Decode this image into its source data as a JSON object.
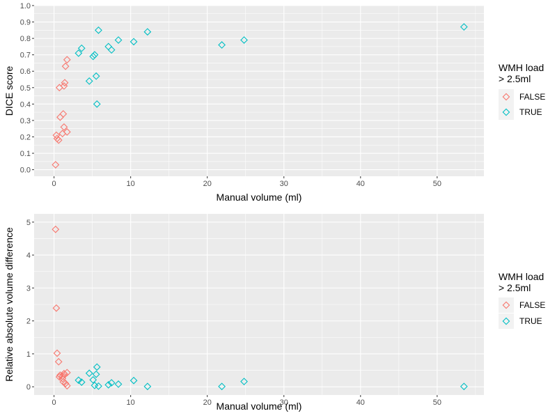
{
  "chart_data": [
    {
      "type": "scatter",
      "xlabel": "Manual volume (ml)",
      "ylabel": "DICE score",
      "xlim": [
        -2.6,
        56.1
      ],
      "ylim": [
        -0.04,
        1.0
      ],
      "xticks": [
        "0",
        "10",
        "20",
        "30",
        "40",
        "50"
      ],
      "yticks": [
        "0.0",
        "0.1",
        "0.2",
        "0.3",
        "0.4",
        "0.5",
        "0.6",
        "0.7",
        "0.8",
        "0.9",
        "1.0"
      ],
      "grid": true,
      "legend": {
        "title": [
          "WMH load",
          "> 2.5ml"
        ],
        "position": "right"
      },
      "series": [
        {
          "name": "FALSE",
          "color": "#F8766D",
          "marker": "diamond-open",
          "points": [
            [
              0.2,
              0.03
            ],
            [
              0.3,
              0.21
            ],
            [
              0.4,
              0.19
            ],
            [
              0.6,
              0.18
            ],
            [
              0.7,
              0.5
            ],
            [
              0.8,
              0.32
            ],
            [
              1.1,
              0.22
            ],
            [
              1.2,
              0.34
            ],
            [
              1.3,
              0.26
            ],
            [
              1.3,
              0.51
            ],
            [
              1.4,
              0.53
            ],
            [
              1.5,
              0.63
            ],
            [
              1.7,
              0.67
            ],
            [
              1.7,
              0.23
            ]
          ]
        },
        {
          "name": "TRUE",
          "color": "#00BFC4",
          "marker": "diamond-open",
          "points": [
            [
              3.2,
              0.71
            ],
            [
              3.6,
              0.74
            ],
            [
              4.6,
              0.54
            ],
            [
              5.1,
              0.69
            ],
            [
              5.3,
              0.7
            ],
            [
              5.5,
              0.57
            ],
            [
              5.6,
              0.4
            ],
            [
              5.8,
              0.85
            ],
            [
              7.1,
              0.75
            ],
            [
              7.5,
              0.73
            ],
            [
              8.4,
              0.79
            ],
            [
              10.4,
              0.78
            ],
            [
              12.2,
              0.84
            ],
            [
              21.9,
              0.76
            ],
            [
              24.8,
              0.79
            ],
            [
              53.5,
              0.87
            ]
          ]
        }
      ]
    },
    {
      "type": "scatter",
      "xlabel": "Manual volume (ml)",
      "ylabel": "Relative absolute volume difference",
      "xlim": [
        -2.6,
        56.1
      ],
      "ylim": [
        -0.25,
        5.25
      ],
      "xticks": [
        "0",
        "10",
        "20",
        "30",
        "40",
        "50"
      ],
      "yticks": [
        "0",
        "1",
        "2",
        "3",
        "4",
        "5"
      ],
      "grid": true,
      "legend": {
        "title": [
          "WMH load",
          "> 2.5ml"
        ],
        "position": "right"
      },
      "series": [
        {
          "name": "FALSE",
          "color": "#F8766D",
          "marker": "diamond-open",
          "points": [
            [
              0.2,
              4.78
            ],
            [
              0.3,
              2.39
            ],
            [
              0.4,
              1.02
            ],
            [
              0.6,
              0.76
            ],
            [
              0.7,
              0.3
            ],
            [
              0.8,
              0.35
            ],
            [
              1.1,
              0.32
            ],
            [
              1.1,
              0.25
            ],
            [
              1.2,
              0.15
            ],
            [
              1.3,
              0.4
            ],
            [
              1.4,
              0.37
            ],
            [
              1.5,
              0.1
            ],
            [
              1.7,
              0.43
            ],
            [
              1.7,
              0.03
            ]
          ]
        },
        {
          "name": "TRUE",
          "color": "#00BFC4",
          "marker": "diamond-open",
          "points": [
            [
              3.2,
              0.2
            ],
            [
              3.6,
              0.14
            ],
            [
              4.6,
              0.41
            ],
            [
              5.1,
              0.21
            ],
            [
              5.3,
              0.04
            ],
            [
              5.5,
              0.38
            ],
            [
              5.6,
              0.6
            ],
            [
              5.8,
              0.02
            ],
            [
              7.1,
              0.06
            ],
            [
              7.5,
              0.12
            ],
            [
              8.4,
              0.08
            ],
            [
              10.4,
              0.19
            ],
            [
              12.2,
              0.01
            ],
            [
              21.9,
              0.01
            ],
            [
              24.8,
              0.16
            ],
            [
              53.5,
              0.01
            ]
          ]
        }
      ]
    }
  ]
}
